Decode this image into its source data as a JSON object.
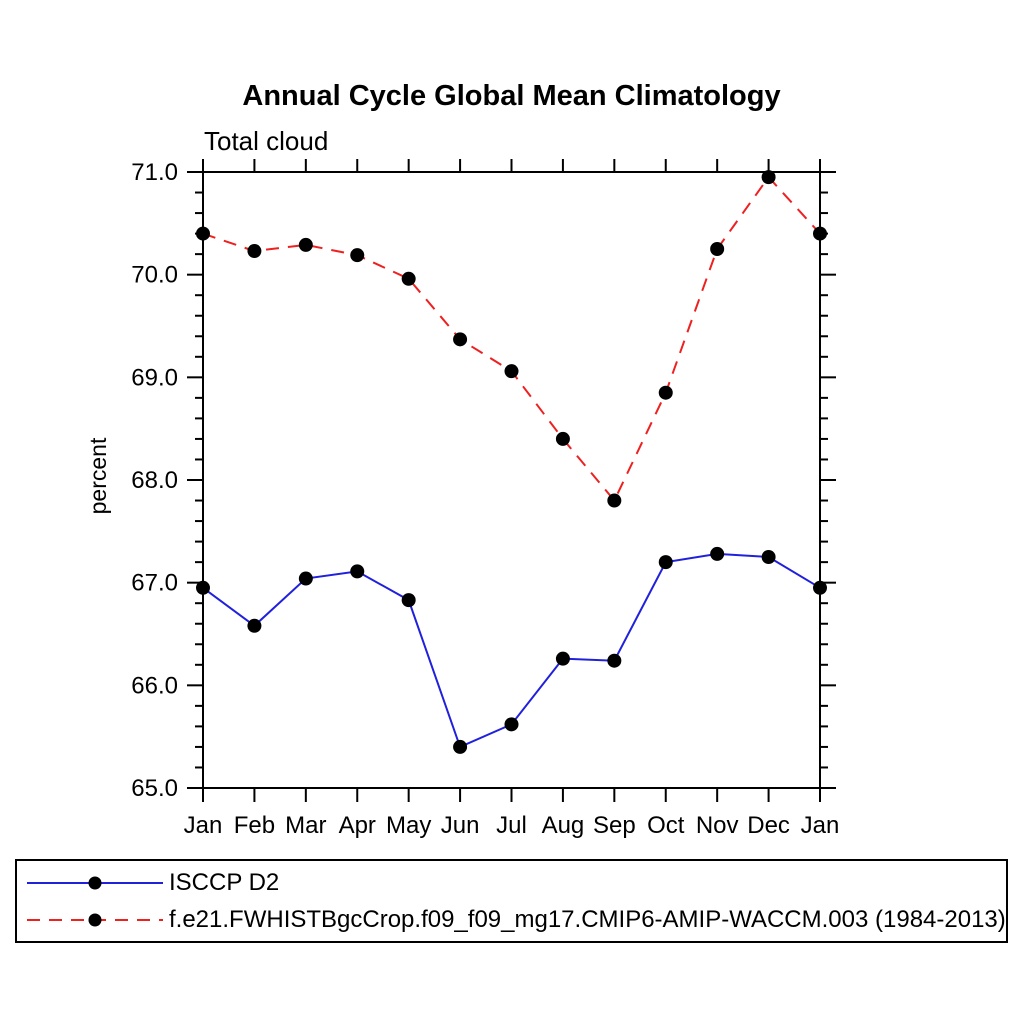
{
  "header": {
    "title": "Annual Cycle Global Mean Climatology",
    "subtitle": "Total cloud"
  },
  "axes": {
    "y_title": "percent"
  },
  "legend": {
    "items": [
      {
        "label": "ISCCP D2"
      },
      {
        "label": "f.e21.FWHISTBgcCrop.f09_f09_mg17.CMIP6-AMIP-WACCM.003 (1984-2013)"
      }
    ]
  },
  "chart_data": {
    "type": "line",
    "title": "Annual Cycle Global Mean Climatology",
    "subtitle": "Total cloud",
    "xlabel": "",
    "ylabel": "percent",
    "x_categories": [
      "Jan",
      "Feb",
      "Mar",
      "Apr",
      "May",
      "Jun",
      "Jul",
      "Aug",
      "Sep",
      "Oct",
      "Nov",
      "Dec",
      "Jan"
    ],
    "ylim": [
      65.0,
      71.0
    ],
    "y_major_step": 1.0,
    "y_minor_step": 0.2,
    "y_tick_labels": [
      "65.0",
      "66.0",
      "67.0",
      "68.0",
      "69.0",
      "70.0",
      "71.0"
    ],
    "grid": false,
    "frame": true,
    "ticks_direction": "outward",
    "legend_position": "bottom-outside-box",
    "axis_color": "#000000",
    "marker_color": "#000000",
    "series": [
      {
        "name": "ISCCP D2",
        "color": "#2020dd",
        "line_style": "solid",
        "marker": "filled-circle",
        "values": [
          66.95,
          66.58,
          67.04,
          67.11,
          66.83,
          65.4,
          65.62,
          66.26,
          66.24,
          67.2,
          67.28,
          67.25,
          66.95
        ]
      },
      {
        "name": "f.e21.FWHISTBgcCrop.f09_f09_mg17.CMIP6-AMIP-WACCM.003 (1984-2013)",
        "color": "#ee2020",
        "line_style": "dashed",
        "marker": "filled-circle",
        "values": [
          70.4,
          70.23,
          70.29,
          70.19,
          69.96,
          69.37,
          69.06,
          68.4,
          67.8,
          68.85,
          70.25,
          70.95,
          70.4
        ]
      }
    ]
  }
}
